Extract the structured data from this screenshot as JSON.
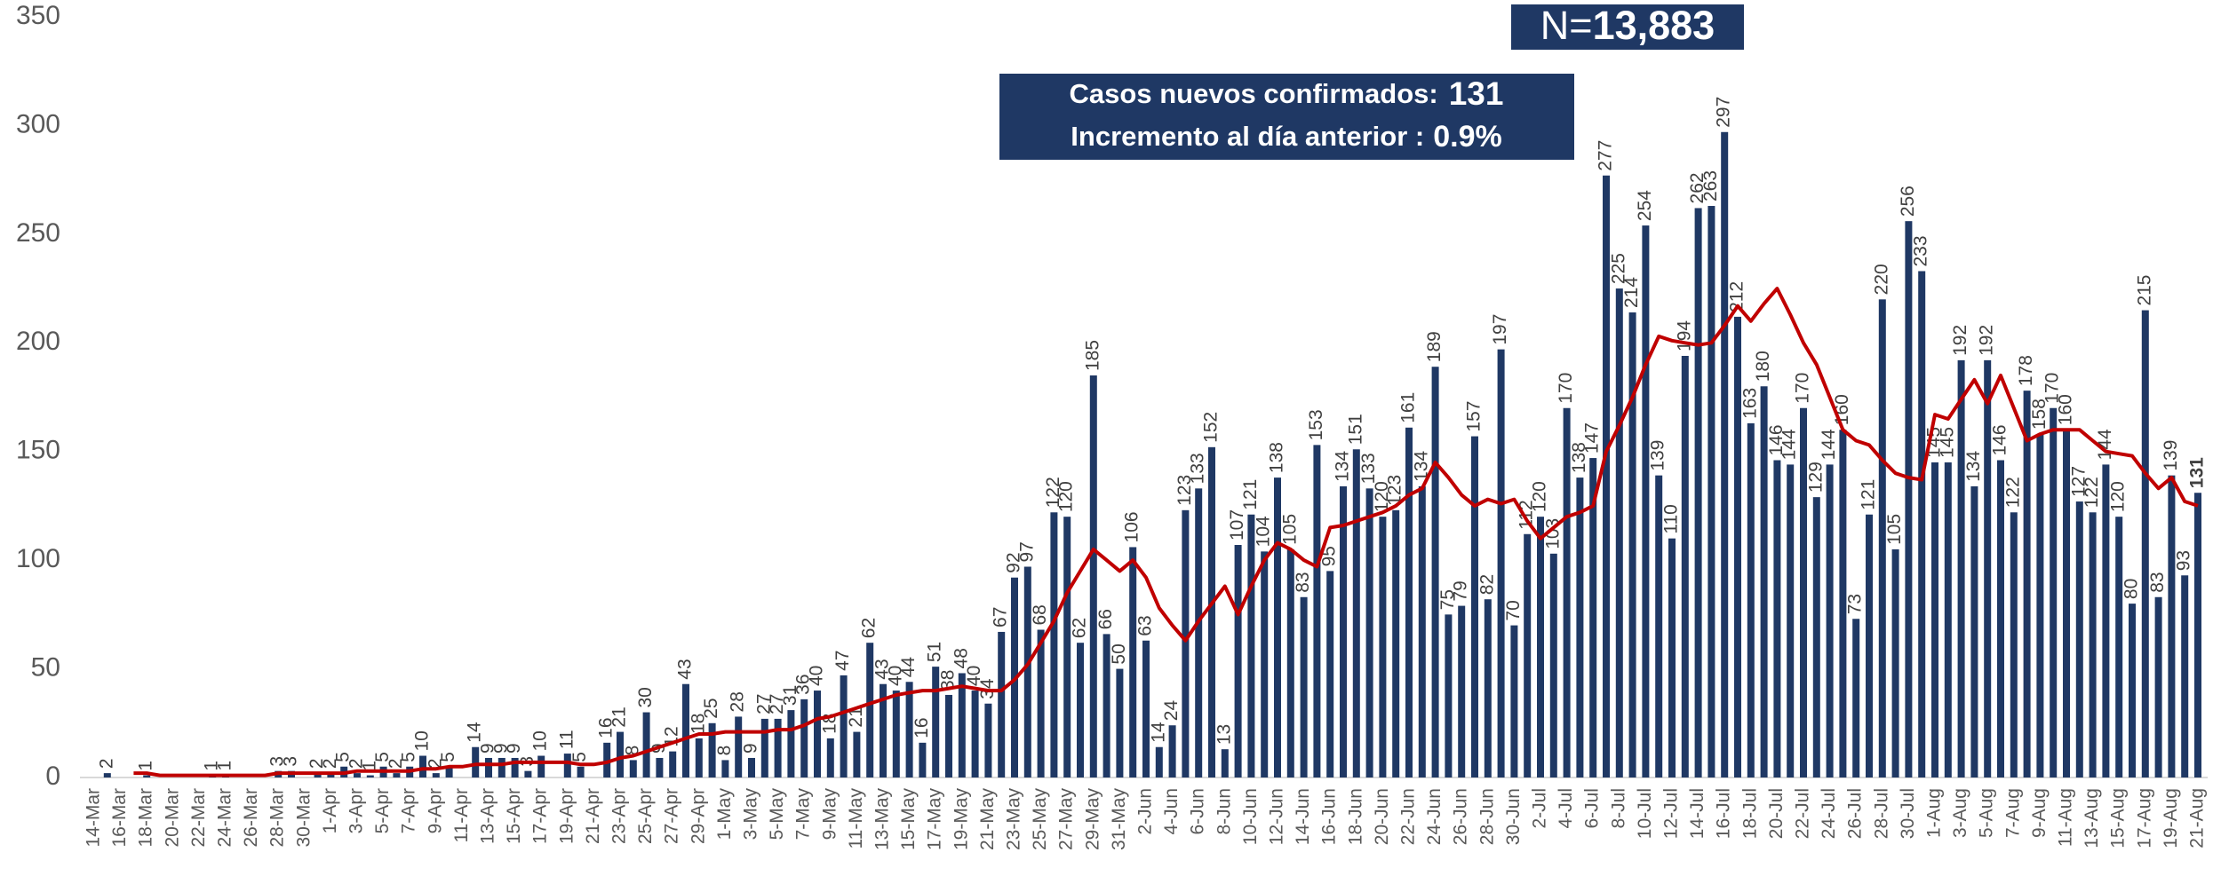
{
  "chart_data": {
    "type": "bar",
    "n_prefix": "N=",
    "n_value": "13,883",
    "info": {
      "label1": "Casos nuevos confirmados:",
      "value1": "131",
      "label2": "Incremento al día anterior :",
      "value2": "0.9%"
    },
    "ylim": [
      0,
      350
    ],
    "yticks": [
      0,
      50,
      100,
      150,
      200,
      250,
      300,
      350
    ],
    "grid": false,
    "highlight_last": true,
    "categories": [
      "14-Mar",
      null,
      "16-Mar",
      null,
      "18-Mar",
      null,
      "20-Mar",
      null,
      "22-Mar",
      null,
      "24-Mar",
      null,
      "26-Mar",
      null,
      "28-Mar",
      null,
      "30-Mar",
      null,
      "1-Apr",
      null,
      "3-Apr",
      null,
      "5-Apr",
      null,
      "7-Apr",
      null,
      "9-Apr",
      null,
      "11-Apr",
      null,
      "13-Apr",
      null,
      "15-Apr",
      null,
      "17-Apr",
      null,
      "19-Apr",
      null,
      "21-Apr",
      null,
      "23-Apr",
      null,
      "25-Apr",
      null,
      "27-Apr",
      null,
      "29-Apr",
      null,
      "1-May",
      null,
      "3-May",
      null,
      "5-May",
      null,
      "7-May",
      null,
      "9-May",
      null,
      "11-May",
      null,
      "13-May",
      null,
      "15-May",
      null,
      "17-May",
      null,
      "19-May",
      null,
      "21-May",
      null,
      "23-May",
      null,
      "25-May",
      null,
      "27-May",
      null,
      "29-May",
      null,
      "31-May",
      null,
      "2-Jun",
      null,
      "4-Jun",
      null,
      "6-Jun",
      null,
      "8-Jun",
      null,
      "10-Jun",
      null,
      "12-Jun",
      null,
      "14-Jun",
      null,
      "16-Jun",
      null,
      "18-Jun",
      null,
      "20-Jun",
      null,
      "22-Jun",
      null,
      "24-Jun",
      null,
      "26-Jun",
      null,
      "28-Jun",
      null,
      "30-Jun",
      null,
      "2-Jul",
      null,
      "4-Jul",
      null,
      "6-Jul",
      null,
      "8-Jul",
      null,
      "10-Jul",
      null,
      "12-Jul",
      null,
      "14-Jul",
      null,
      "16-Jul",
      null,
      "18-Jul",
      null,
      "20-Jul",
      null,
      "22-Jul",
      null,
      "24-Jul",
      null,
      "26-Jul",
      null,
      "28-Jul",
      null,
      "30-Jul",
      null,
      "1-Aug",
      null,
      "3-Aug",
      null,
      "5-Aug",
      null,
      "7-Aug",
      null,
      "9-Aug",
      null,
      "11-Aug",
      null,
      "13-Aug",
      null,
      "15-Aug",
      null,
      "17-Aug",
      null,
      "19-Aug",
      null,
      "21-Aug"
    ],
    "series": [
      {
        "type": "bar",
        "color": "#1f3864",
        "values": [
          0,
          2,
          0,
          0,
          1,
          0,
          0,
          0,
          0,
          1,
          1,
          0,
          0,
          0,
          3,
          3,
          0,
          2,
          2,
          5,
          2,
          1,
          5,
          2,
          5,
          10,
          2,
          5,
          0,
          14,
          9,
          9,
          9,
          3,
          10,
          0,
          11,
          5,
          0,
          16,
          21,
          8,
          30,
          9,
          12,
          43,
          18,
          25,
          8,
          28,
          9,
          27,
          27,
          31,
          36,
          40,
          18,
          47,
          21,
          62,
          43,
          40,
          44,
          16,
          51,
          38,
          48,
          40,
          34,
          67,
          92,
          97,
          68,
          122,
          120,
          62,
          185,
          66,
          50,
          106,
          63,
          14,
          24,
          123,
          133,
          152,
          13,
          107,
          121,
          104,
          138,
          105,
          83,
          153,
          95,
          134,
          151,
          133,
          120,
          123,
          161,
          134,
          189,
          75,
          79,
          157,
          82,
          197,
          70,
          112,
          120,
          103,
          170,
          138,
          147,
          277,
          225,
          214,
          254,
          139,
          110,
          194,
          262,
          263,
          297,
          212,
          163,
          180,
          146,
          144,
          170,
          129,
          144,
          160,
          73,
          121,
          220,
          105,
          256,
          233,
          145,
          145,
          192,
          134,
          192,
          146,
          122,
          178,
          158,
          170,
          160,
          127,
          122,
          144,
          120,
          80,
          215,
          83,
          139,
          93,
          131
        ]
      },
      {
        "type": "line",
        "color": "#c00000",
        "values": [
          null,
          null,
          null,
          2,
          2,
          1,
          1,
          1,
          1,
          1,
          1,
          1,
          1,
          1,
          2,
          2,
          2,
          2,
          2,
          2,
          3,
          3,
          3,
          3,
          3,
          4,
          4,
          5,
          5,
          6,
          6,
          6,
          7,
          7,
          7,
          7,
          7,
          6,
          6,
          7,
          9,
          10,
          12,
          14,
          16,
          18,
          20,
          20,
          21,
          21,
          21,
          21,
          22,
          22,
          24,
          27,
          28,
          30,
          32,
          34,
          36,
          38,
          39,
          40,
          40,
          41,
          42,
          41,
          40,
          40,
          45,
          52,
          62,
          72,
          85,
          95,
          105,
          100,
          95,
          100,
          92,
          78,
          70,
          63,
          72,
          80,
          88,
          75,
          88,
          100,
          108,
          105,
          100,
          97,
          115,
          116,
          118,
          120,
          122,
          125,
          130,
          133,
          145,
          138,
          130,
          125,
          128,
          126,
          128,
          118,
          110,
          115,
          120,
          122,
          125,
          150,
          162,
          175,
          190,
          203,
          201,
          200,
          199,
          200,
          208,
          217,
          210,
          218,
          225,
          213,
          200,
          190,
          175,
          160,
          155,
          153,
          146,
          140,
          138,
          137,
          167,
          165,
          174,
          183,
          172,
          185,
          170,
          155,
          158,
          160,
          160,
          160,
          155,
          150,
          149,
          148,
          140,
          133,
          138,
          127,
          125
        ]
      }
    ]
  }
}
